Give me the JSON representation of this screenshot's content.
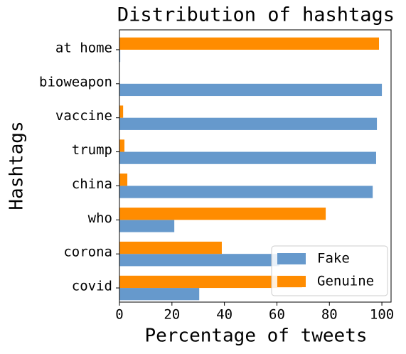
{
  "chart_data": {
    "type": "barh",
    "title": "Distribution of hashtags",
    "x_label": "Percentage of tweets",
    "y_label": "Hashtags",
    "categories": [
      "at home",
      "bioweapon",
      "vaccine",
      "trump",
      "china",
      "who",
      "corona",
      "covid"
    ],
    "series": [
      {
        "name": "Fake",
        "color": "#6699cc",
        "values": [
          0.3,
          100,
          98.1,
          97.8,
          96.5,
          20.9,
          61,
          30.4
        ]
      },
      {
        "name": "Genuine",
        "color": "#ff8c00",
        "values": [
          98.9,
          0,
          1.4,
          1.9,
          3.0,
          78.6,
          39.0,
          69.6
        ]
      }
    ],
    "xlim": [
      0,
      103.5
    ],
    "xticks": [
      0,
      20,
      40,
      60,
      80,
      100
    ],
    "grid": false,
    "legend": "lower right"
  }
}
